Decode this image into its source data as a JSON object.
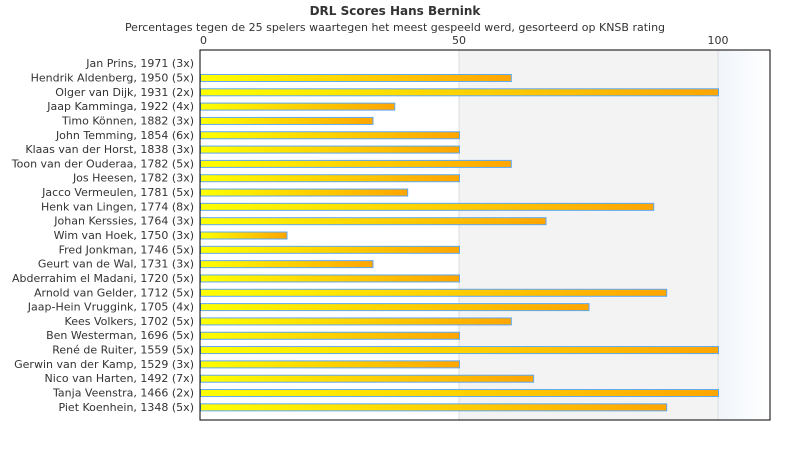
{
  "chart_data": {
    "type": "bar",
    "orientation": "horizontal",
    "title": "DRL Scores Hans Bernink",
    "subtitle": "Percentages tegen de 25 spelers waartegen het meest gespeeld werd, gesorteerd op KNSB rating",
    "xlim": [
      0,
      110
    ],
    "xticks": [
      0,
      50,
      100
    ],
    "categories": [
      "Jan Prins, 1971 (3x)",
      "Hendrik Aldenberg, 1950 (5x)",
      "Olger van Dijk, 1931 (2x)",
      "Jaap Kamminga, 1922 (4x)",
      "Timo Können, 1882 (3x)",
      "John Temming, 1854 (6x)",
      "Klaas van der Horst, 1838 (3x)",
      "Toon van der Ouderaa, 1782 (5x)",
      "Jos Heesen, 1782 (3x)",
      "Jacco Vermeulen, 1781 (5x)",
      "Henk van Lingen, 1774 (8x)",
      "Johan Kerssies, 1764 (3x)",
      "Wim van Hoek, 1750 (3x)",
      "Fred Jonkman, 1746 (5x)",
      "Geurt van de Wal, 1731 (3x)",
      "Abderrahim el Madani, 1720 (5x)",
      "Arnold van Gelder, 1712 (5x)",
      "Jaap-Hein Vruggink, 1705 (4x)",
      "Kees Volkers, 1702 (5x)",
      "Ben Westerman, 1696 (5x)",
      "René de Ruiter, 1559 (5x)",
      "Gerwin van der Kamp, 1529 (3x)",
      "Nico van Harten, 1492 (7x)",
      "Tanja Veenstra, 1466 (2x)",
      "Piet Koenhein, 1348 (5x)"
    ],
    "values": [
      0,
      60,
      100,
      37.5,
      33.3,
      50,
      50,
      60,
      50,
      40,
      87.5,
      66.7,
      16.7,
      50,
      33.3,
      50,
      90,
      75,
      60,
      50,
      100,
      50,
      64.3,
      100,
      90
    ],
    "colors": {
      "bar_start": "#ffff00",
      "bar_end": "#ffa500",
      "bar_border": "#5ea8f0",
      "band": "#f3f3f3"
    }
  }
}
